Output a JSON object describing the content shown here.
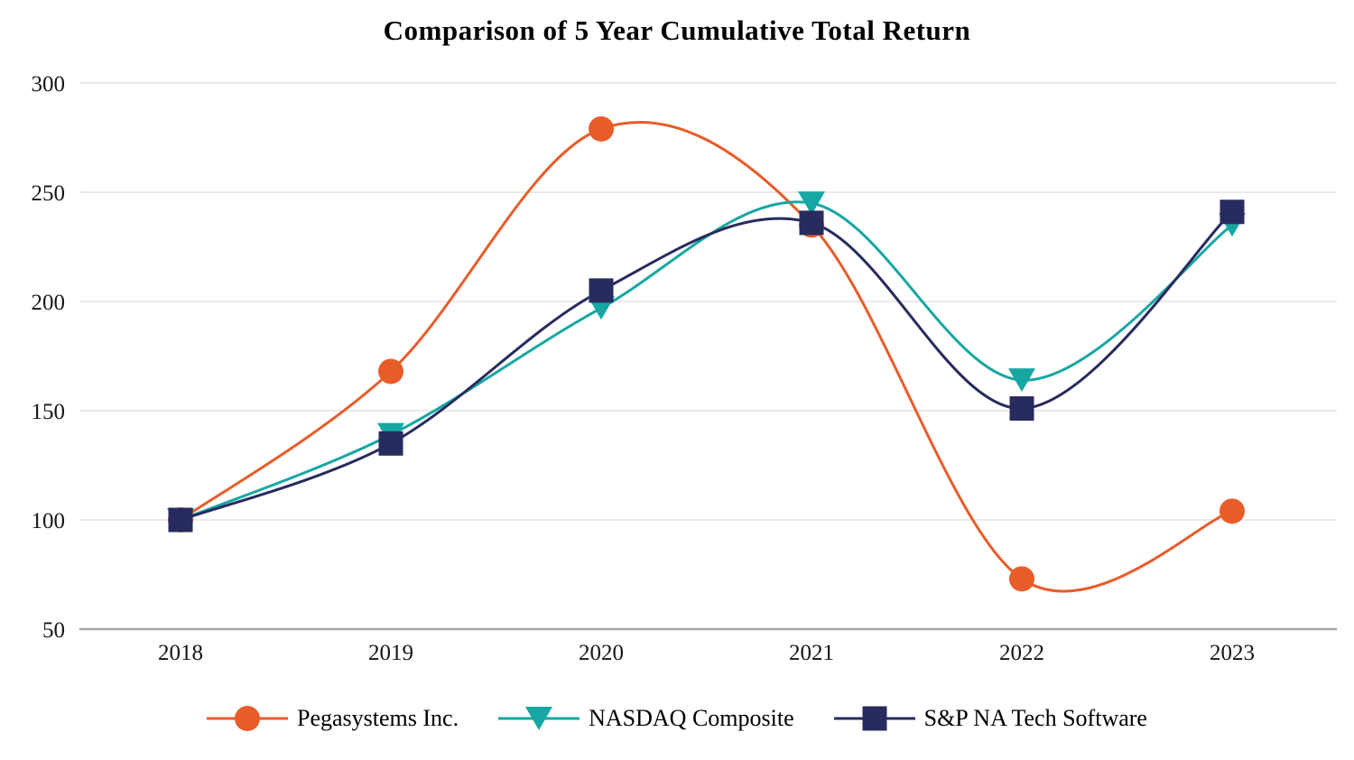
{
  "chart_data": {
    "type": "line",
    "title": "Comparison of 5 Year Cumulative Total Return",
    "categories": [
      "2018",
      "2019",
      "2020",
      "2021",
      "2022",
      "2023"
    ],
    "series": [
      {
        "name": "Pegasystems Inc.",
        "marker": "circle",
        "color": "#E85C2A",
        "values": [
          100,
          168,
          279,
          235,
          73,
          104
        ]
      },
      {
        "name": "NASDAQ Composite",
        "marker": "triangle-down",
        "color": "#17A7A3",
        "values": [
          100,
          139,
          197,
          245,
          164,
          235
        ]
      },
      {
        "name": "S&P NA Tech Software",
        "marker": "square",
        "color": "#272B5E",
        "values": [
          100,
          135,
          205,
          236,
          151,
          241
        ]
      }
    ],
    "yticks": [
      50,
      100,
      150,
      200,
      250,
      300
    ],
    "ylim": [
      50,
      300
    ],
    "xlabel": "",
    "ylabel": "",
    "grid": "horizontal",
    "legend_position": "bottom",
    "smooth": true
  },
  "colors": {
    "gridline": "#EAEAEA",
    "axis_line": "#A6A6A6",
    "tick_text": "#161616",
    "title_text": "#000000"
  }
}
